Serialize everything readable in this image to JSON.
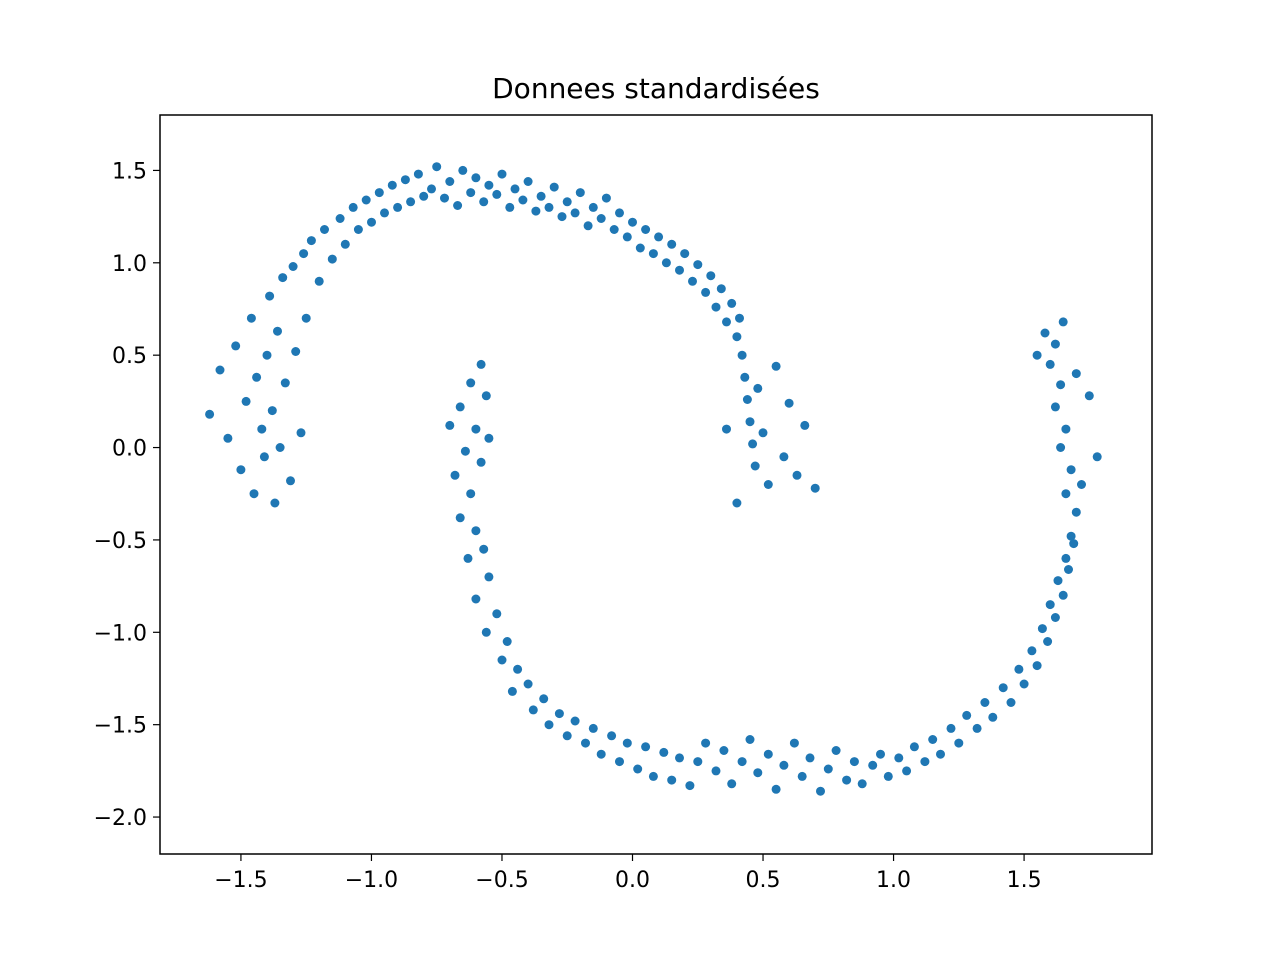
{
  "chart_data": {
    "type": "scatter",
    "title": "Donnees standardisées",
    "xlabel": "",
    "ylabel": "",
    "xlim": [
      -1.81,
      1.99
    ],
    "ylim": [
      -2.2,
      1.8
    ],
    "x_ticks": [
      {
        "value": -1.5,
        "label": "−1.5"
      },
      {
        "value": -1.0,
        "label": "−1.0"
      },
      {
        "value": -0.5,
        "label": "−0.5"
      },
      {
        "value": 0.0,
        "label": "0.0"
      },
      {
        "value": 0.5,
        "label": "0.5"
      },
      {
        "value": 1.0,
        "label": "1.0"
      },
      {
        "value": 1.5,
        "label": "1.5"
      }
    ],
    "y_ticks": [
      {
        "value": 1.5,
        "label": "1.5"
      },
      {
        "value": 1.0,
        "label": "1.0"
      },
      {
        "value": 0.5,
        "label": "0.5"
      },
      {
        "value": 0.0,
        "label": "0.0"
      },
      {
        "value": -0.5,
        "label": "−0.5"
      },
      {
        "value": -1.0,
        "label": "−1.0"
      },
      {
        "value": -1.5,
        "label": "−1.5"
      },
      {
        "value": -2.0,
        "label": "−2.0"
      }
    ],
    "grid": false,
    "legend": "none",
    "marker_color": "#1f77b4",
    "series": [
      {
        "points": [
          [
            -1.62,
            0.18
          ],
          [
            -1.58,
            0.42
          ],
          [
            -1.55,
            0.05
          ],
          [
            -1.52,
            0.55
          ],
          [
            -1.5,
            -0.12
          ],
          [
            -1.48,
            0.25
          ],
          [
            -1.46,
            0.7
          ],
          [
            -1.45,
            -0.25
          ],
          [
            -1.44,
            0.38
          ],
          [
            -1.42,
            0.1
          ],
          [
            -1.41,
            -0.05
          ],
          [
            -1.4,
            0.5
          ],
          [
            -1.39,
            0.82
          ],
          [
            -1.38,
            0.2
          ],
          [
            -1.37,
            -0.3
          ],
          [
            -1.36,
            0.63
          ],
          [
            -1.35,
            0.0
          ],
          [
            -1.34,
            0.92
          ],
          [
            -1.33,
            0.35
          ],
          [
            -1.31,
            -0.18
          ],
          [
            -1.3,
            0.98
          ],
          [
            -1.29,
            0.52
          ],
          [
            -1.27,
            0.08
          ],
          [
            -1.26,
            1.05
          ],
          [
            -1.25,
            0.7
          ],
          [
            -1.23,
            1.12
          ],
          [
            -1.2,
            0.9
          ],
          [
            -1.18,
            1.18
          ],
          [
            -1.15,
            1.02
          ],
          [
            -1.12,
            1.24
          ],
          [
            -1.1,
            1.1
          ],
          [
            -1.07,
            1.3
          ],
          [
            -1.05,
            1.18
          ],
          [
            -1.02,
            1.34
          ],
          [
            -1.0,
            1.22
          ],
          [
            -0.97,
            1.38
          ],
          [
            -0.95,
            1.27
          ],
          [
            -0.92,
            1.42
          ],
          [
            -0.9,
            1.3
          ],
          [
            -0.87,
            1.45
          ],
          [
            -0.85,
            1.33
          ],
          [
            -0.82,
            1.48
          ],
          [
            -0.8,
            1.36
          ],
          [
            -0.77,
            1.4
          ],
          [
            -0.75,
            1.52
          ],
          [
            -0.72,
            1.35
          ],
          [
            -0.7,
            1.44
          ],
          [
            -0.67,
            1.31
          ],
          [
            -0.65,
            1.5
          ],
          [
            -0.62,
            1.38
          ],
          [
            -0.6,
            1.46
          ],
          [
            -0.57,
            1.33
          ],
          [
            -0.55,
            1.42
          ],
          [
            -0.52,
            1.37
          ],
          [
            -0.5,
            1.48
          ],
          [
            -0.47,
            1.3
          ],
          [
            -0.45,
            1.4
          ],
          [
            -0.42,
            1.34
          ],
          [
            -0.4,
            1.44
          ],
          [
            -0.37,
            1.28
          ],
          [
            -0.35,
            1.36
          ],
          [
            -0.32,
            1.3
          ],
          [
            -0.3,
            1.41
          ],
          [
            -0.27,
            1.25
          ],
          [
            -0.25,
            1.33
          ],
          [
            -0.22,
            1.27
          ],
          [
            -0.2,
            1.38
          ],
          [
            -0.17,
            1.2
          ],
          [
            -0.15,
            1.3
          ],
          [
            -0.12,
            1.24
          ],
          [
            -0.1,
            1.35
          ],
          [
            -0.07,
            1.18
          ],
          [
            -0.05,
            1.27
          ],
          [
            -0.02,
            1.14
          ],
          [
            0.0,
            1.22
          ],
          [
            0.03,
            1.08
          ],
          [
            0.05,
            1.18
          ],
          [
            0.08,
            1.05
          ],
          [
            0.1,
            1.14
          ],
          [
            0.13,
            1.0
          ],
          [
            0.15,
            1.1
          ],
          [
            0.18,
            0.96
          ],
          [
            0.2,
            1.05
          ],
          [
            0.23,
            0.9
          ],
          [
            0.25,
            0.99
          ],
          [
            0.28,
            0.84
          ],
          [
            0.3,
            0.93
          ],
          [
            0.32,
            0.76
          ],
          [
            0.34,
            0.86
          ],
          [
            0.36,
            0.68
          ],
          [
            0.38,
            0.78
          ],
          [
            0.4,
            0.6
          ],
          [
            0.41,
            0.7
          ],
          [
            0.42,
            0.5
          ],
          [
            0.43,
            0.38
          ],
          [
            0.44,
            0.26
          ],
          [
            0.45,
            0.14
          ],
          [
            0.46,
            0.02
          ],
          [
            0.47,
            -0.1
          ],
          [
            0.48,
            0.32
          ],
          [
            0.5,
            0.08
          ],
          [
            0.52,
            -0.2
          ],
          [
            0.55,
            0.44
          ],
          [
            0.58,
            -0.05
          ],
          [
            0.6,
            0.24
          ],
          [
            0.63,
            -0.15
          ],
          [
            0.66,
            0.12
          ],
          [
            0.7,
            -0.22
          ],
          [
            0.4,
            -0.3
          ],
          [
            0.36,
            0.1
          ],
          [
            -0.58,
            0.45
          ],
          [
            -0.62,
            0.35
          ],
          [
            -0.66,
            0.22
          ],
          [
            -0.7,
            0.12
          ],
          [
            -0.56,
            0.28
          ],
          [
            -0.6,
            0.1
          ],
          [
            -0.64,
            -0.02
          ],
          [
            -0.68,
            -0.15
          ],
          [
            -0.58,
            -0.08
          ],
          [
            -0.55,
            0.05
          ],
          [
            -0.62,
            -0.25
          ],
          [
            -0.66,
            -0.38
          ],
          [
            -0.6,
            -0.45
          ],
          [
            -0.57,
            -0.55
          ],
          [
            -0.63,
            -0.6
          ],
          [
            -0.55,
            -0.7
          ],
          [
            -0.6,
            -0.82
          ],
          [
            -0.52,
            -0.9
          ],
          [
            -0.56,
            -1.0
          ],
          [
            -0.48,
            -1.05
          ],
          [
            -0.5,
            -1.15
          ],
          [
            -0.44,
            -1.2
          ],
          [
            -0.46,
            -1.32
          ],
          [
            -0.4,
            -1.28
          ],
          [
            -0.38,
            -1.42
          ],
          [
            -0.34,
            -1.36
          ],
          [
            -0.32,
            -1.5
          ],
          [
            -0.28,
            -1.44
          ],
          [
            -0.25,
            -1.56
          ],
          [
            -0.22,
            -1.48
          ],
          [
            -0.18,
            -1.6
          ],
          [
            -0.15,
            -1.52
          ],
          [
            -0.12,
            -1.66
          ],
          [
            -0.08,
            -1.56
          ],
          [
            -0.05,
            -1.7
          ],
          [
            -0.02,
            -1.6
          ],
          [
            0.02,
            -1.74
          ],
          [
            0.05,
            -1.62
          ],
          [
            0.08,
            -1.78
          ],
          [
            0.12,
            -1.65
          ],
          [
            0.15,
            -1.8
          ],
          [
            0.18,
            -1.68
          ],
          [
            0.22,
            -1.83
          ],
          [
            0.25,
            -1.7
          ],
          [
            0.28,
            -1.6
          ],
          [
            0.32,
            -1.75
          ],
          [
            0.35,
            -1.64
          ],
          [
            0.38,
            -1.82
          ],
          [
            0.42,
            -1.7
          ],
          [
            0.45,
            -1.58
          ],
          [
            0.48,
            -1.76
          ],
          [
            0.52,
            -1.66
          ],
          [
            0.55,
            -1.85
          ],
          [
            0.58,
            -1.72
          ],
          [
            0.62,
            -1.6
          ],
          [
            0.65,
            -1.78
          ],
          [
            0.68,
            -1.68
          ],
          [
            0.72,
            -1.86
          ],
          [
            0.75,
            -1.74
          ],
          [
            0.78,
            -1.64
          ],
          [
            0.82,
            -1.8
          ],
          [
            0.85,
            -1.7
          ],
          [
            0.88,
            -1.82
          ],
          [
            0.92,
            -1.72
          ],
          [
            0.95,
            -1.66
          ],
          [
            0.98,
            -1.78
          ],
          [
            1.02,
            -1.68
          ],
          [
            1.05,
            -1.75
          ],
          [
            1.08,
            -1.62
          ],
          [
            1.12,
            -1.7
          ],
          [
            1.15,
            -1.58
          ],
          [
            1.18,
            -1.66
          ],
          [
            1.22,
            -1.52
          ],
          [
            1.25,
            -1.6
          ],
          [
            1.28,
            -1.45
          ],
          [
            1.32,
            -1.52
          ],
          [
            1.35,
            -1.38
          ],
          [
            1.38,
            -1.46
          ],
          [
            1.42,
            -1.3
          ],
          [
            1.45,
            -1.38
          ],
          [
            1.48,
            -1.2
          ],
          [
            1.5,
            -1.28
          ],
          [
            1.53,
            -1.1
          ],
          [
            1.55,
            -1.18
          ],
          [
            1.57,
            -0.98
          ],
          [
            1.59,
            -1.05
          ],
          [
            1.6,
            -0.85
          ],
          [
            1.62,
            -0.92
          ],
          [
            1.63,
            -0.72
          ],
          [
            1.65,
            -0.8
          ],
          [
            1.66,
            -0.6
          ],
          [
            1.67,
            -0.66
          ],
          [
            1.68,
            -0.48
          ],
          [
            1.69,
            -0.52
          ],
          [
            1.7,
            -0.35
          ],
          [
            1.66,
            -0.25
          ],
          [
            1.68,
            -0.12
          ],
          [
            1.64,
            0.0
          ],
          [
            1.66,
            0.1
          ],
          [
            1.62,
            0.22
          ],
          [
            1.64,
            0.34
          ],
          [
            1.6,
            0.45
          ],
          [
            1.62,
            0.56
          ],
          [
            1.58,
            0.62
          ],
          [
            1.65,
            0.68
          ],
          [
            1.55,
            0.5
          ],
          [
            1.7,
            0.4
          ],
          [
            1.72,
            -0.2
          ],
          [
            1.75,
            0.28
          ],
          [
            1.78,
            -0.05
          ]
        ]
      }
    ]
  }
}
